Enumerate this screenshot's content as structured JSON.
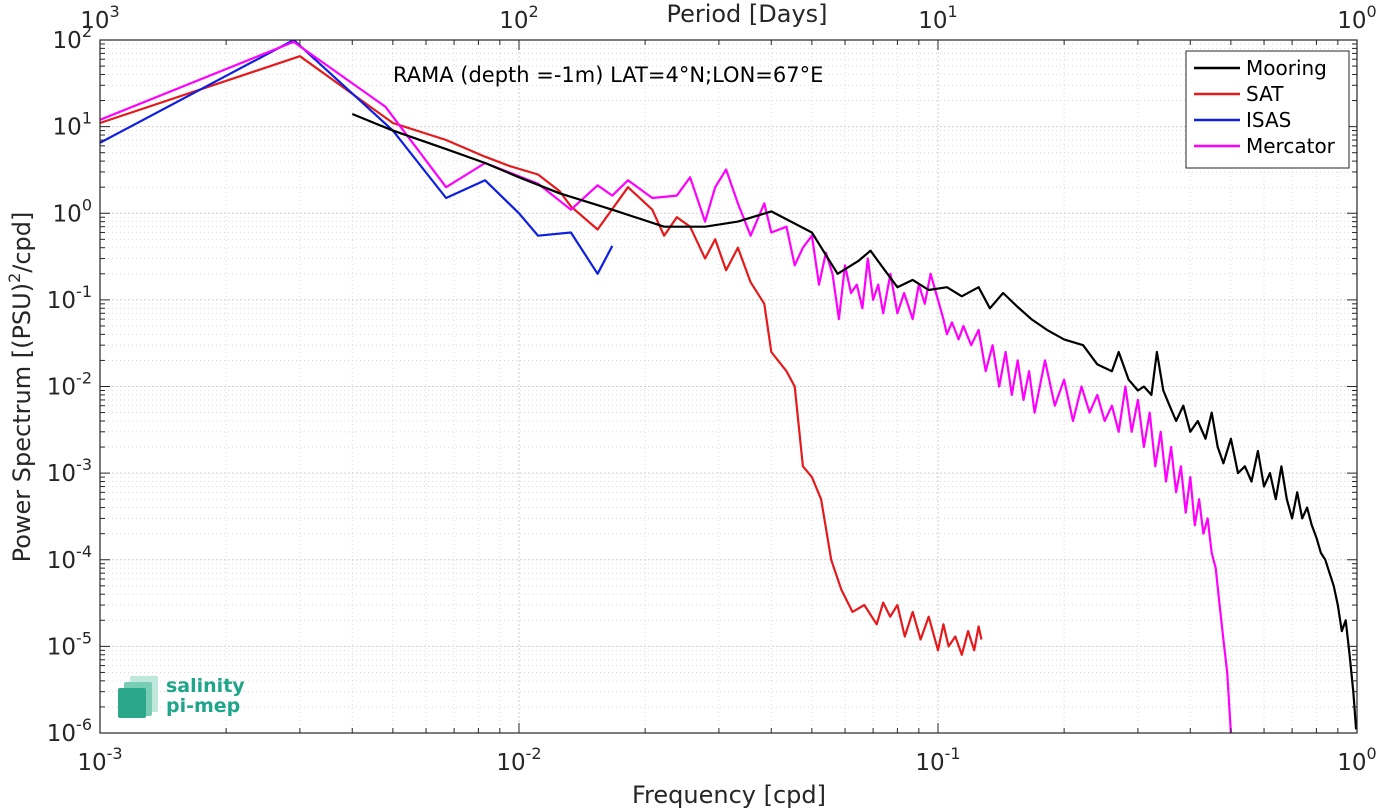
{
  "chart_data": {
    "type": "line",
    "x_scale": "log",
    "y_scale": "log",
    "xlim": [
      0.001,
      1
    ],
    "ylim": [
      1e-06,
      100
    ],
    "grid": true,
    "legend_position": "top-right",
    "xlabel": "Frequency [cpd]",
    "ylabel_prefix": "Power Spectrum [(PSU)",
    "ylabel_sup": "2",
    "ylabel_suffix": "/cpd]",
    "top_axis_label": "Period [Days]",
    "annotation": "RAMA (depth =-1m) LAT=4°N;LON=67°E",
    "x_ticks": [
      0.001,
      0.01,
      0.1,
      1
    ],
    "x_tick_labels": [
      {
        "base": "10",
        "exp": "-3"
      },
      {
        "base": "10",
        "exp": "-2"
      },
      {
        "base": "10",
        "exp": "-1"
      },
      {
        "base": "10",
        "exp": "0"
      }
    ],
    "top_ticks": [
      0.001,
      0.01,
      0.1,
      1
    ],
    "top_tick_labels": [
      {
        "base": "10",
        "exp": "3"
      },
      {
        "base": "10",
        "exp": "2"
      },
      {
        "base": "10",
        "exp": "1"
      },
      {
        "base": "10",
        "exp": "0"
      }
    ],
    "y_ticks": [
      1e-06,
      1e-05,
      0.0001,
      0.001,
      0.01,
      0.1,
      1,
      10,
      100
    ],
    "y_tick_labels": [
      {
        "base": "10",
        "exp": "-6"
      },
      {
        "base": "10",
        "exp": "-5"
      },
      {
        "base": "10",
        "exp": "-4"
      },
      {
        "base": "10",
        "exp": "-3"
      },
      {
        "base": "10",
        "exp": "-2"
      },
      {
        "base": "10",
        "exp": "-1"
      },
      {
        "base": "10",
        "exp": "0"
      },
      {
        "base": "10",
        "exp": "1"
      },
      {
        "base": "10",
        "exp": "2"
      }
    ],
    "series": [
      {
        "name": "Mooring",
        "color": "#000000",
        "points": [
          [
            0.004,
            14
          ],
          [
            0.005,
            9
          ],
          [
            0.0067,
            5.5
          ],
          [
            0.0083,
            3.8
          ],
          [
            0.01,
            2.6
          ],
          [
            0.0125,
            1.7
          ],
          [
            0.0167,
            1.1
          ],
          [
            0.0222,
            0.7
          ],
          [
            0.0278,
            0.7
          ],
          [
            0.0333,
            0.8
          ],
          [
            0.04,
            1.05
          ],
          [
            0.05,
            0.6
          ],
          [
            0.0576,
            0.2
          ],
          [
            0.0645,
            0.28
          ],
          [
            0.069,
            0.37
          ],
          [
            0.0741,
            0.23
          ],
          [
            0.08,
            0.14
          ],
          [
            0.087,
            0.17
          ],
          [
            0.095,
            0.13
          ],
          [
            0.105,
            0.14
          ],
          [
            0.114,
            0.11
          ],
          [
            0.125,
            0.14
          ],
          [
            0.133,
            0.08
          ],
          [
            0.143,
            0.12
          ],
          [
            0.154,
            0.085
          ],
          [
            0.167,
            0.06
          ],
          [
            0.182,
            0.045
          ],
          [
            0.2,
            0.035
          ],
          [
            0.222,
            0.03
          ],
          [
            0.24,
            0.018
          ],
          [
            0.26,
            0.015
          ],
          [
            0.27,
            0.025
          ],
          [
            0.285,
            0.012
          ],
          [
            0.3,
            0.009
          ],
          [
            0.31,
            0.01
          ],
          [
            0.323,
            0.008
          ],
          [
            0.333,
            0.025
          ],
          [
            0.345,
            0.009
          ],
          [
            0.357,
            0.006
          ],
          [
            0.37,
            0.004
          ],
          [
            0.385,
            0.006
          ],
          [
            0.4,
            0.003
          ],
          [
            0.417,
            0.004
          ],
          [
            0.435,
            0.0025
          ],
          [
            0.45,
            0.005
          ],
          [
            0.465,
            0.002
          ],
          [
            0.48,
            0.0013
          ],
          [
            0.5,
            0.0025
          ],
          [
            0.52,
            0.001
          ],
          [
            0.54,
            0.0012
          ],
          [
            0.56,
            0.0008
          ],
          [
            0.58,
            0.0018
          ],
          [
            0.6,
            0.0007
          ],
          [
            0.62,
            0.001
          ],
          [
            0.64,
            0.0005
          ],
          [
            0.66,
            0.0012
          ],
          [
            0.68,
            0.0005
          ],
          [
            0.7,
            0.0003
          ],
          [
            0.72,
            0.0006
          ],
          [
            0.74,
            0.0003
          ],
          [
            0.76,
            0.0004
          ],
          [
            0.78,
            0.00025
          ],
          [
            0.8,
            0.00018
          ],
          [
            0.82,
            0.00012
          ],
          [
            0.84,
            0.0001
          ],
          [
            0.86,
            7e-05
          ],
          [
            0.88,
            5e-05
          ],
          [
            0.9,
            3e-05
          ],
          [
            0.92,
            1.5e-05
          ],
          [
            0.94,
            2e-05
          ],
          [
            0.96,
            8e-06
          ],
          [
            0.98,
            3e-06
          ],
          [
            0.995,
            1.1e-06
          ]
        ]
      },
      {
        "name": "SAT",
        "color": "#e41a1c",
        "points": [
          [
            0.001,
            11
          ],
          [
            0.003,
            65
          ],
          [
            0.005,
            11
          ],
          [
            0.0067,
            7
          ],
          [
            0.0083,
            4.5
          ],
          [
            0.0095,
            3.5
          ],
          [
            0.0111,
            2.8
          ],
          [
            0.0125,
            1.8
          ],
          [
            0.0133,
            1.2
          ],
          [
            0.0154,
            0.65
          ],
          [
            0.0182,
            2
          ],
          [
            0.0208,
            1.1
          ],
          [
            0.0222,
            0.55
          ],
          [
            0.0238,
            0.9
          ],
          [
            0.0256,
            0.7
          ],
          [
            0.0278,
            0.3
          ],
          [
            0.0294,
            0.5
          ],
          [
            0.0312,
            0.22
          ],
          [
            0.0333,
            0.4
          ],
          [
            0.0357,
            0.16
          ],
          [
            0.0385,
            0.09
          ],
          [
            0.04,
            0.025
          ],
          [
            0.0435,
            0.015
          ],
          [
            0.0455,
            0.01
          ],
          [
            0.0476,
            0.0012
          ],
          [
            0.05,
            0.0009
          ],
          [
            0.0526,
            0.0005
          ],
          [
            0.0556,
            0.0001
          ],
          [
            0.0588,
            4.5e-05
          ],
          [
            0.0625,
            2.5e-05
          ],
          [
            0.0667,
            3e-05
          ],
          [
            0.0714,
            1.8e-05
          ],
          [
            0.074,
            3.2e-05
          ],
          [
            0.0769,
            2.2e-05
          ],
          [
            0.08,
            3e-05
          ],
          [
            0.0833,
            1.3e-05
          ],
          [
            0.087,
            2.5e-05
          ],
          [
            0.0909,
            1.2e-05
          ],
          [
            0.095,
            2.2e-05
          ],
          [
            0.1,
            9e-06
          ],
          [
            0.103,
            1.8e-05
          ],
          [
            0.106,
            1e-05
          ],
          [
            0.11,
            1.3e-05
          ],
          [
            0.114,
            8e-06
          ],
          [
            0.118,
            1.5e-05
          ],
          [
            0.122,
            9e-06
          ],
          [
            0.125,
            1.7e-05
          ],
          [
            0.127,
            1.2e-05
          ]
        ]
      },
      {
        "name": "ISAS",
        "color": "#0d1fe0",
        "points": [
          [
            0.001,
            6.5
          ],
          [
            0.0029,
            100
          ],
          [
            0.005,
            9
          ],
          [
            0.0067,
            1.5
          ],
          [
            0.0083,
            2.4
          ],
          [
            0.01,
            1.0
          ],
          [
            0.0111,
            0.55
          ],
          [
            0.0133,
            0.6
          ],
          [
            0.0154,
            0.2
          ],
          [
            0.0167,
            0.42
          ]
        ]
      },
      {
        "name": "Mercator",
        "color": "#ff00ff",
        "points": [
          [
            0.001,
            12
          ],
          [
            0.0029,
            95
          ],
          [
            0.0048,
            17
          ],
          [
            0.0067,
            2
          ],
          [
            0.0083,
            3.8
          ],
          [
            0.0111,
            2.2
          ],
          [
            0.0133,
            1.1
          ],
          [
            0.0154,
            2.1
          ],
          [
            0.0167,
            1.6
          ],
          [
            0.0182,
            2.4
          ],
          [
            0.0208,
            1.5
          ],
          [
            0.0238,
            1.6
          ],
          [
            0.0256,
            2.6
          ],
          [
            0.0278,
            0.8
          ],
          [
            0.0294,
            2
          ],
          [
            0.0312,
            3.2
          ],
          [
            0.0333,
            1.3
          ],
          [
            0.0357,
            0.55
          ],
          [
            0.0385,
            1.3
          ],
          [
            0.04,
            0.6
          ],
          [
            0.0435,
            0.7
          ],
          [
            0.0455,
            0.25
          ],
          [
            0.0476,
            0.4
          ],
          [
            0.05,
            0.55
          ],
          [
            0.052,
            0.15
          ],
          [
            0.054,
            0.35
          ],
          [
            0.056,
            0.2
          ],
          [
            0.058,
            0.06
          ],
          [
            0.06,
            0.25
          ],
          [
            0.062,
            0.12
          ],
          [
            0.064,
            0.15
          ],
          [
            0.066,
            0.08
          ],
          [
            0.068,
            0.3
          ],
          [
            0.07,
            0.1
          ],
          [
            0.072,
            0.15
          ],
          [
            0.074,
            0.07
          ],
          [
            0.077,
            0.2
          ],
          [
            0.08,
            0.07
          ],
          [
            0.083,
            0.12
          ],
          [
            0.087,
            0.06
          ],
          [
            0.09,
            0.15
          ],
          [
            0.093,
            0.09
          ],
          [
            0.096,
            0.2
          ],
          [
            0.1,
            0.1
          ],
          [
            0.103,
            0.06
          ],
          [
            0.105,
            0.04
          ],
          [
            0.108,
            0.055
          ],
          [
            0.112,
            0.035
          ],
          [
            0.115,
            0.05
          ],
          [
            0.12,
            0.03
          ],
          [
            0.125,
            0.045
          ],
          [
            0.13,
            0.015
          ],
          [
            0.135,
            0.03
          ],
          [
            0.14,
            0.01
          ],
          [
            0.145,
            0.025
          ],
          [
            0.15,
            0.008
          ],
          [
            0.155,
            0.02
          ],
          [
            0.16,
            0.007
          ],
          [
            0.165,
            0.015
          ],
          [
            0.17,
            0.005
          ],
          [
            0.18,
            0.02
          ],
          [
            0.19,
            0.006
          ],
          [
            0.2,
            0.012
          ],
          [
            0.21,
            0.004
          ],
          [
            0.22,
            0.01
          ],
          [
            0.23,
            0.005
          ],
          [
            0.24,
            0.008
          ],
          [
            0.25,
            0.004
          ],
          [
            0.26,
            0.006
          ],
          [
            0.27,
            0.003
          ],
          [
            0.28,
            0.01
          ],
          [
            0.29,
            0.003
          ],
          [
            0.3,
            0.007
          ],
          [
            0.31,
            0.002
          ],
          [
            0.32,
            0.005
          ],
          [
            0.33,
            0.0012
          ],
          [
            0.34,
            0.003
          ],
          [
            0.35,
            0.0008
          ],
          [
            0.36,
            0.002
          ],
          [
            0.37,
            0.0006
          ],
          [
            0.38,
            0.0012
          ],
          [
            0.39,
            0.00035
          ],
          [
            0.4,
            0.0009
          ],
          [
            0.41,
            0.00025
          ],
          [
            0.42,
            0.0005
          ],
          [
            0.43,
            0.0002
          ],
          [
            0.44,
            0.0003
          ],
          [
            0.45,
            0.00012
          ],
          [
            0.46,
            8e-05
          ],
          [
            0.47,
            3e-05
          ],
          [
            0.48,
            1.2e-05
          ],
          [
            0.49,
            5e-06
          ],
          [
            0.5,
            1e-06
          ]
        ]
      }
    ]
  },
  "logo": {
    "line1": "salinity",
    "line2": "pi-mep"
  }
}
